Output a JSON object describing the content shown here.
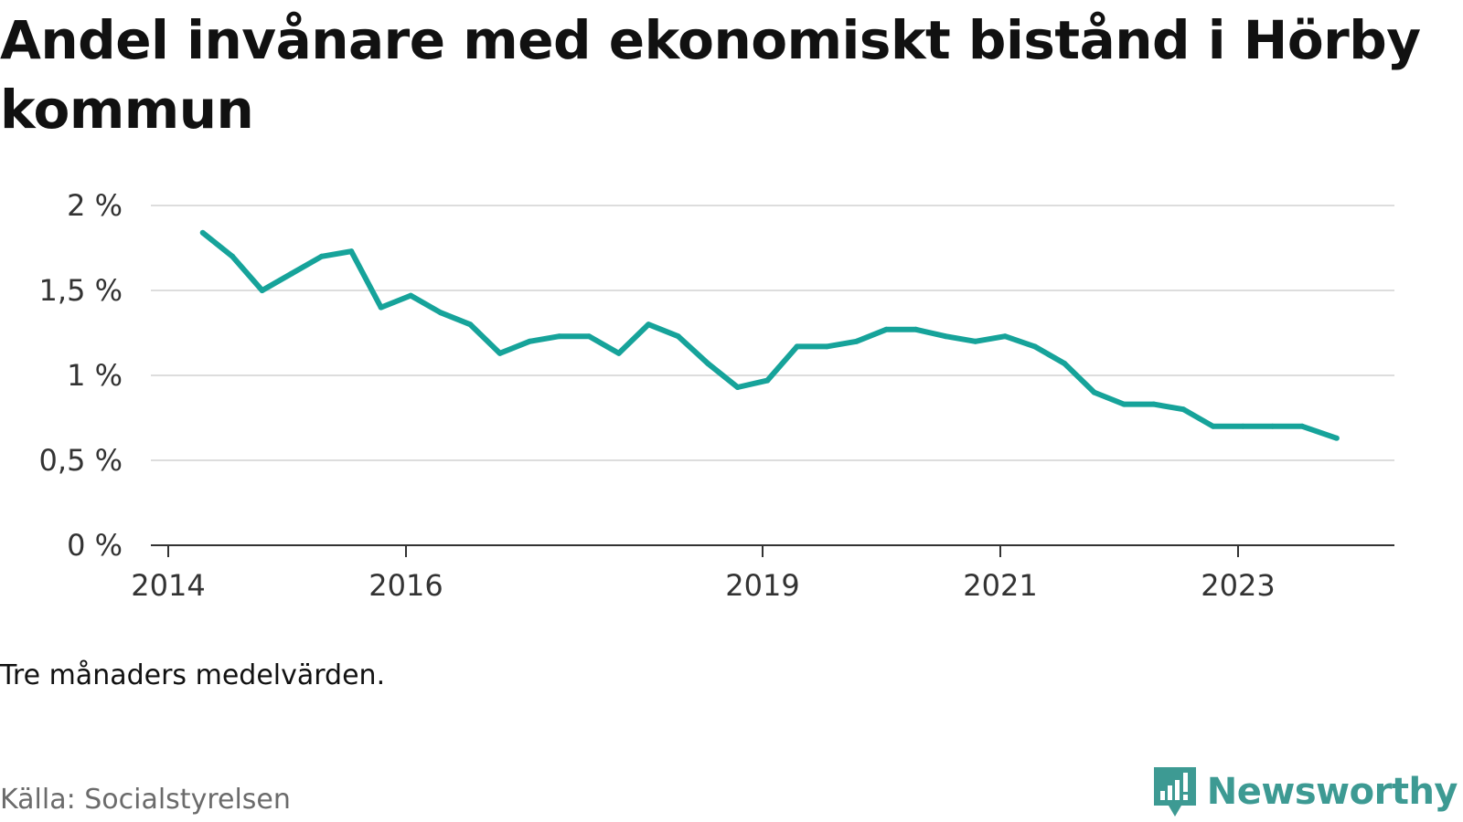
{
  "chart_data": {
    "type": "line",
    "title": "Andel invånare med ekonomiskt bistånd i Hörby kommun",
    "note": "Tre månaders medelvärden.",
    "source": "Källa: Socialstyrelsen",
    "brand": "Newsworthy",
    "ylim": [
      0,
      2
    ],
    "y_ticks": [
      {
        "value": 0,
        "label": "0 %"
      },
      {
        "value": 0.5,
        "label": "0,5 %"
      },
      {
        "value": 1,
        "label": "1 %"
      },
      {
        "value": 1.5,
        "label": "1,5 %"
      },
      {
        "value": 2,
        "label": "2 %"
      }
    ],
    "x_ticks": [
      {
        "value": 2014,
        "label": "2014"
      },
      {
        "value": 2016,
        "label": "2016"
      },
      {
        "value": 2019,
        "label": "2019"
      },
      {
        "value": 2021,
        "label": "2021"
      },
      {
        "value": 2023,
        "label": "2023"
      }
    ],
    "xlim": [
      2013.9,
      2024.3
    ],
    "grid": true,
    "colors": {
      "line": "#16a39a",
      "grid": "#dddddd",
      "axis": "#333333",
      "brand": "#3d9a93"
    },
    "series": [
      {
        "x": [
          2014.29,
          2014.54,
          2014.79,
          2015.04,
          2015.29,
          2015.54,
          2015.79,
          2016.04,
          2016.29,
          2016.54,
          2016.79,
          2017.04,
          2017.29,
          2017.54,
          2017.79,
          2018.04,
          2018.29,
          2018.54,
          2018.79,
          2019.04,
          2019.29,
          2019.54,
          2019.79,
          2020.04,
          2020.29,
          2020.54,
          2020.79,
          2021.04,
          2021.29,
          2021.54,
          2021.79,
          2022.04,
          2022.29,
          2022.54,
          2022.79,
          2023.04,
          2023.29,
          2023.54,
          2023.83
        ],
        "values": [
          1.84,
          1.7,
          1.5,
          1.6,
          1.7,
          1.73,
          1.4,
          1.47,
          1.37,
          1.3,
          1.13,
          1.2,
          1.23,
          1.23,
          1.13,
          1.3,
          1.23,
          1.07,
          0.93,
          0.97,
          1.17,
          1.17,
          1.2,
          1.27,
          1.27,
          1.23,
          1.2,
          1.23,
          1.17,
          1.07,
          0.9,
          0.83,
          0.83,
          0.8,
          0.7,
          0.7,
          0.7,
          0.7,
          0.63
        ]
      }
    ]
  }
}
